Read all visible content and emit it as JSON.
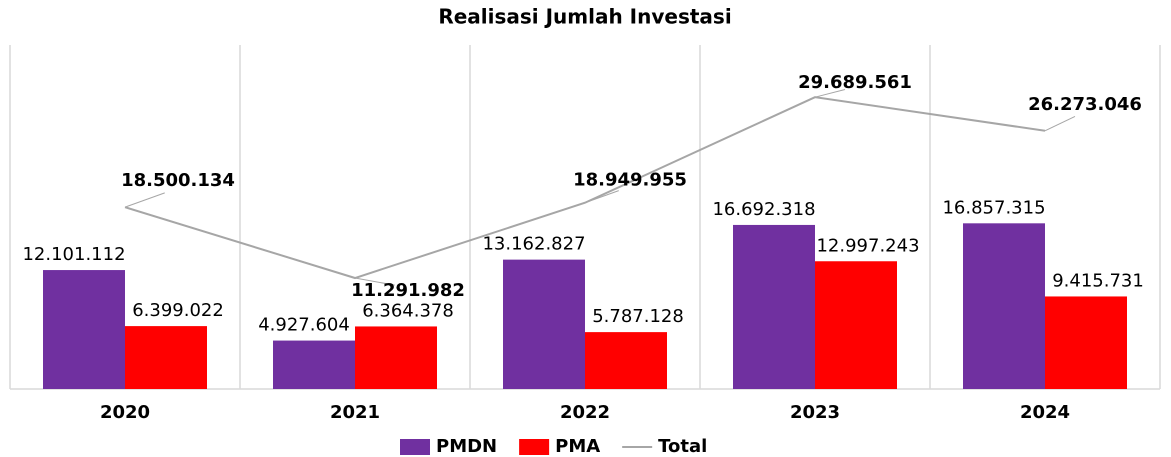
{
  "chart_data": {
    "type": "bar_line",
    "title": "Realisasi Jumlah Investasi",
    "categories": [
      "2020",
      "2021",
      "2022",
      "2023",
      "2024"
    ],
    "ylim": [
      0,
      35000000
    ],
    "series": [
      {
        "name": "PMDN",
        "type": "bar",
        "color": "#7030a0",
        "values": [
          12101112,
          4927604,
          13162827,
          16692318,
          16857315
        ],
        "value_labels": [
          "12.101.112",
          "4.927.604",
          "13.162.827",
          "16.692.318",
          "16.857.315"
        ]
      },
      {
        "name": "PMA",
        "type": "bar",
        "color": "#ff0000",
        "values": [
          6399022,
          6364378,
          5787128,
          12997243,
          9415731
        ],
        "value_labels": [
          "6.399.022",
          "6.364.378",
          "5.787.128",
          "12.997.243",
          "9.415.731"
        ]
      },
      {
        "name": "Total",
        "type": "line",
        "color": "#a6a6a6",
        "values": [
          18500134,
          11291982,
          18949955,
          29689561,
          26273046
        ],
        "value_labels": [
          "18.500.134",
          "11.291.982",
          "18.949.955",
          "29.689.561",
          "26.273.046"
        ]
      }
    ]
  }
}
